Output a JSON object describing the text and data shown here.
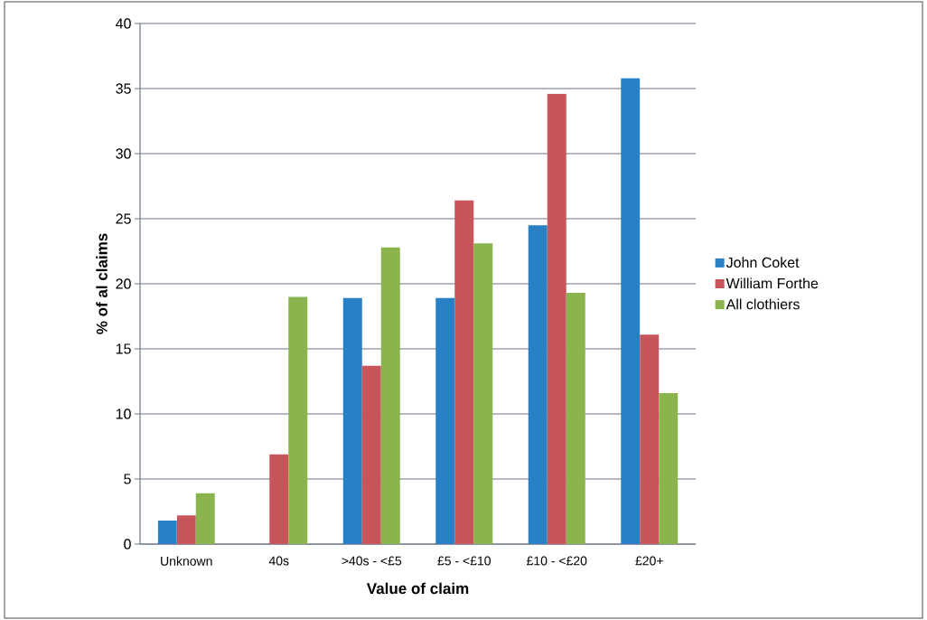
{
  "chart_data": {
    "type": "bar",
    "xlabel": "Value of claim",
    "ylabel": "% of al claims",
    "categories": [
      "Unknown",
      "40s",
      ">40s - <£5",
      "£5 - <£10",
      "£10 - <£20",
      "£20+"
    ],
    "series": [
      {
        "name": "John Coket",
        "color": "#2a80c5",
        "values": [
          1.8,
          0,
          18.9,
          18.9,
          24.5,
          35.8
        ]
      },
      {
        "name": "William Forthe",
        "color": "#c8555c",
        "values": [
          2.2,
          6.9,
          13.7,
          26.4,
          34.6,
          16.1
        ]
      },
      {
        "name": "All clothiers",
        "color": "#8cb44e",
        "values": [
          3.9,
          19.0,
          22.8,
          23.1,
          19.3,
          11.6
        ]
      }
    ],
    "ylim": [
      0,
      40
    ],
    "yticks": [
      0,
      5,
      10,
      15,
      20,
      25,
      30,
      35,
      40
    ],
    "grid": "y",
    "legend": "right"
  }
}
